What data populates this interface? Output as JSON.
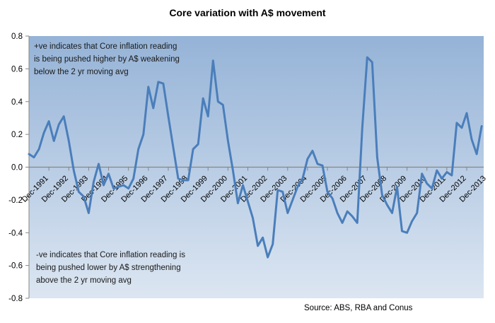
{
  "chart_data": {
    "type": "line",
    "title": "Core variation with A$ movement",
    "xlabel": "",
    "ylabel": "",
    "ylim": [
      -0.8,
      0.8
    ],
    "yticks": [
      0.8,
      0.6,
      0.4,
      0.2,
      0.0,
      -0.2,
      -0.4,
      -0.6,
      -0.8
    ],
    "ytick_labels": [
      "0.8",
      "0.6",
      "0.4",
      "0.2",
      "0.0",
      "-0.2",
      "-0.4",
      "-0.6",
      "-0.8"
    ],
    "xtick_labels": [
      "Dec-1991",
      "Dec-1992",
      "Dec-1993",
      "Dec-1994",
      "Dec-1995",
      "Dec-1996",
      "Dec-1997",
      "Dec-1998",
      "Dec-1999",
      "Dec-2000",
      "Dec-2001",
      "Dec-2002",
      "Dec-2003",
      "Dec-2004",
      "Dec-2005",
      "Dec-2006",
      "Dec-2007",
      "Dec-2008",
      "Dec-2009",
      "Dec-2010",
      "Dec-2011",
      "Dec-2012",
      "Dec-2013"
    ],
    "x_frequency": "quarterly",
    "x_start": "Dec-1991",
    "grid": false,
    "legend": "none",
    "series": [
      {
        "name": "Core variation",
        "color": "#4a7ebb",
        "values": [
          0.08,
          0.06,
          0.11,
          0.21,
          0.28,
          0.16,
          0.26,
          0.31,
          0.16,
          -0.02,
          -0.15,
          -0.18,
          -0.28,
          -0.09,
          0.02,
          -0.11,
          -0.04,
          -0.13,
          -0.12,
          -0.11,
          -0.13,
          -0.07,
          0.11,
          0.2,
          0.49,
          0.36,
          0.52,
          0.51,
          0.31,
          0.12,
          -0.07,
          -0.08,
          -0.08,
          0.11,
          0.14,
          0.42,
          0.31,
          0.65,
          0.4,
          0.38,
          0.16,
          -0.02,
          -0.22,
          -0.11,
          -0.21,
          -0.31,
          -0.48,
          -0.43,
          -0.55,
          -0.47,
          -0.14,
          -0.15,
          -0.28,
          -0.2,
          -0.12,
          -0.07,
          0.05,
          0.1,
          0.02,
          0.01,
          -0.15,
          -0.19,
          -0.28,
          -0.34,
          -0.27,
          -0.3,
          -0.34,
          0.24,
          0.67,
          0.64,
          0.06,
          -0.17,
          -0.23,
          -0.28,
          -0.12,
          -0.39,
          -0.4,
          -0.33,
          -0.28,
          -0.04,
          -0.1,
          -0.13,
          -0.02,
          -0.07,
          -0.03,
          -0.05,
          0.27,
          0.24,
          0.33,
          0.17,
          0.08,
          0.25
        ]
      }
    ],
    "annotations": [
      {
        "id": "positive_note",
        "lines": [
          "+ve indicates that Core inflation reading",
          "is being pushed higher by A$ weakening",
          "below the 2 yr moving avg"
        ]
      },
      {
        "id": "negative_note",
        "lines": [
          "-ve indicates that Core inflation reading is",
          "being pushed lower by A$ strengthening",
          "above the 2 yr moving avg"
        ]
      }
    ],
    "source": "Source: ABS, RBA and Conus",
    "colors": {
      "plot_top": "#95b3d7",
      "plot_bottom": "#dce6f2",
      "axis": "#868686",
      "line": "#4a7ebb"
    }
  }
}
